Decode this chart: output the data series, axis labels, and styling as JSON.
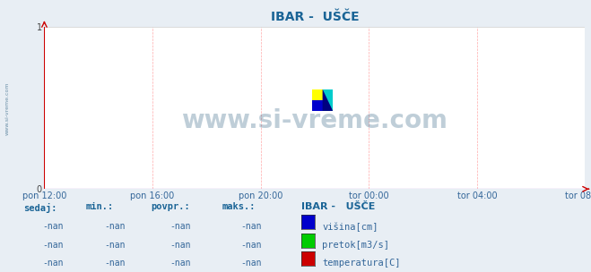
{
  "title": "IBAR -  UŠČE",
  "title_color": "#1a6496",
  "bg_color": "#e8eef4",
  "plot_bg_color": "#ffffff",
  "grid_color_h": "#cccccc",
  "grid_color_v": "#ffaaaa",
  "axis_color": "#9900aa",
  "ylim": [
    0,
    1
  ],
  "yticks": [
    0,
    1
  ],
  "xtick_labels": [
    "pon 12:00",
    "pon 16:00",
    "pon 20:00",
    "tor 00:00",
    "tor 04:00",
    "tor 08:00"
  ],
  "watermark": "www.si-vreme.com",
  "watermark_color": "#1a5276",
  "left_label": "www.si-vreme.com",
  "legend_title": "IBAR -   UŠČE",
  "legend_items": [
    {
      "label": "višina[cm]",
      "color": "#0000cc"
    },
    {
      "label": "pretok[m3/s]",
      "color": "#00cc00"
    },
    {
      "label": "temperatura[C]",
      "color": "#cc0000"
    }
  ],
  "table_headers": [
    "sedaj:",
    "min.:",
    "povpr.:",
    "maks.:"
  ],
  "table_rows": [
    [
      "-nan",
      "-nan",
      "-nan",
      "-nan"
    ],
    [
      "-nan",
      "-nan",
      "-nan",
      "-nan"
    ],
    [
      "-nan",
      "-nan",
      "-nan",
      "-nan"
    ]
  ],
  "figsize": [
    6.59,
    3.04
  ],
  "dpi": 100
}
